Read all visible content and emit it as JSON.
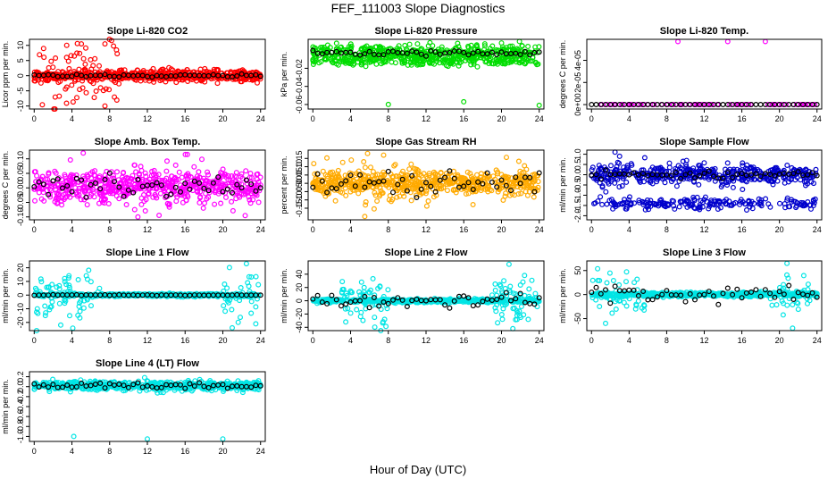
{
  "figure": {
    "title": "FEF_111003  Slope Diagnostics",
    "xlabel": "Hour of Day (UTC)"
  },
  "chart_data": [
    {
      "type": "scatter",
      "title": "Slope Li-820 CO2",
      "ylabel": "Licor ppm per min.",
      "color": "#ff0000",
      "xlim": [
        -0.5,
        24.5
      ],
      "ylim": [
        -11,
        12
      ],
      "xticks": [
        0,
        4,
        8,
        12,
        16,
        20,
        24
      ],
      "yticks": [
        -10,
        -5,
        0,
        5,
        10
      ],
      "yticklabels": [
        "-10",
        "-5",
        "0",
        "5",
        "10"
      ],
      "generator": {
        "center": 0,
        "spread": 2.5,
        "wide": 9,
        "wide_frac": 0.15,
        "tail_hours": [
          [
            0.5,
            9
          ]
        ],
        "black_spread": 0.3,
        "seed": 11
      },
      "outliers": [
        {
          "x": 5,
          "y": 10.5
        },
        {
          "x": 7.5,
          "y": 10.5
        },
        {
          "x": 1,
          "y": 9
        },
        {
          "x": 7.5,
          "y": -10
        }
      ]
    },
    {
      "type": "scatter",
      "title": "Slope Li-820 Pressure",
      "ylabel": "kPa per min.",
      "color": "#00dd00",
      "xlim": [
        -0.5,
        24.5
      ],
      "ylim": [
        -0.065,
        0.012
      ],
      "xticks": [
        0,
        4,
        8,
        12,
        16,
        20,
        24
      ],
      "yticks": [
        -0.06,
        -0.04,
        -0.02
      ],
      "yticklabels": [
        "-0.06",
        "-0.04",
        "-0.02"
      ],
      "generator": {
        "center": -0.003,
        "spread": 0.006,
        "wide": 0.008,
        "wide_frac": 0.2,
        "band2": -0.012,
        "black_spread": 0.002,
        "seed": 23
      },
      "outliers": [
        {
          "x": 8,
          "y": -0.06
        },
        {
          "x": 16,
          "y": -0.057
        },
        {
          "x": 24,
          "y": -0.061
        },
        {
          "x": 20,
          "y": 0.008
        }
      ]
    },
    {
      "type": "scatter",
      "title": "Slope Li-820 Temp.",
      "ylabel": "degrees C per min.",
      "color": "#ff00ff",
      "xlim": [
        -0.5,
        24.5
      ],
      "ylim": [
        -4e-06,
        5.9e-05
      ],
      "xticks": [
        0,
        4,
        8,
        12,
        16,
        20,
        24
      ],
      "yticks": [
        0,
        2e-05,
        4e-05
      ],
      "yticklabels": [
        "0e+00",
        "2e-05",
        "4e-05"
      ],
      "generator": {
        "center": 0,
        "spread": 0,
        "wide": 0,
        "wide_frac": 0,
        "black_spread": 0,
        "seed": 31,
        "flat": true
      },
      "outliers": [
        {
          "x": 9.2,
          "y": 5.7e-05
        },
        {
          "x": 14.5,
          "y": 5.7e-05
        },
        {
          "x": 18.5,
          "y": 5.7e-05
        }
      ]
    },
    {
      "type": "scatter",
      "title": "Slope Amb. Box Temp.",
      "ylabel": "degrees C per min.",
      "color": "#ff00ff",
      "xlim": [
        -0.5,
        24.5
      ],
      "ylim": [
        -0.11,
        0.13
      ],
      "xticks": [
        0,
        4,
        8,
        12,
        16,
        20,
        24
      ],
      "yticks": [
        -0.1,
        -0.05,
        0,
        0.05,
        0.1
      ],
      "yticklabels": [
        "-0.10",
        "-0.05",
        "0.00",
        "0.05",
        "0.10"
      ],
      "generator": {
        "center": 0.005,
        "spread": 0.035,
        "wide": 0.065,
        "wide_frac": 0.15,
        "black_spread": 0.03,
        "seed": 43
      },
      "outliers": [
        {
          "x": 5.2,
          "y": 0.12
        },
        {
          "x": 11,
          "y": -0.1
        }
      ]
    },
    {
      "type": "scatter",
      "title": "Slope Gas Stream RH",
      "ylabel": "percent per min.",
      "color": "#ffaa00",
      "xlim": [
        -0.5,
        24.5
      ],
      "ylim": [
        -0.22,
        0.2
      ],
      "xticks": [
        0,
        4,
        8,
        12,
        16,
        20,
        24
      ],
      "yticks": [
        -0.15,
        -0.1,
        -0.05,
        0,
        0.05,
        0.1,
        0.15
      ],
      "yticklabels": [
        "-0.15",
        "-0.10",
        "-0.05",
        "0.00",
        "0.05",
        "0.10",
        "0.15"
      ],
      "generator": {
        "center": 0,
        "spread": 0.05,
        "wide": 0.11,
        "wide_frac": 0.12,
        "black_spread": 0.05,
        "seed": 57
      },
      "outliers": [
        {
          "x": 5.8,
          "y": 0.18
        },
        {
          "x": 5.5,
          "y": -0.2
        },
        {
          "x": 7.5,
          "y": 0.17
        }
      ]
    },
    {
      "type": "scatter",
      "title": "Slope Sample Flow",
      "ylabel": "ml/min per min.",
      "color": "#0000cc",
      "xlim": [
        -0.5,
        24.5
      ],
      "ylim": [
        -2.2,
        1.2
      ],
      "xticks": [
        0,
        4,
        8,
        12,
        16,
        20,
        24
      ],
      "yticks": [
        -2,
        -1.5,
        -1,
        -0.5,
        0,
        0.5,
        1
      ],
      "yticklabels": [
        "-2.0",
        "-1.5",
        "-1.0",
        "-0.5",
        "0.0",
        "0.5",
        "1.0"
      ],
      "generator": {
        "center": 0,
        "spread": 0.3,
        "wide": 0.5,
        "wide_frac": 0.2,
        "band2": -1.4,
        "black_spread": 0.15,
        "seed": 71
      },
      "outliers": [
        {
          "x": 2.5,
          "y": 1.1
        }
      ]
    },
    {
      "type": "scatter",
      "title": "Slope Line 1 Flow",
      "ylabel": "ml/min per min.",
      "color": "#00e5e5",
      "xlim": [
        -0.5,
        24.5
      ],
      "ylim": [
        -26,
        25
      ],
      "xticks": [
        0,
        4,
        8,
        12,
        16,
        20,
        24
      ],
      "yticks": [
        -20,
        -10,
        0,
        10,
        20
      ],
      "yticklabels": [
        "-20",
        "-10",
        "0",
        "10",
        "20"
      ],
      "generator": {
        "center": 0,
        "spread": 1.5,
        "wide": 14,
        "wide_frac": 0.1,
        "tail_hours": [
          [
            0,
            7
          ],
          [
            20,
            24
          ]
        ],
        "black_spread": 0.2,
        "seed": 83
      },
      "outliers": [
        {
          "x": 21,
          "y": -24
        },
        {
          "x": 23.5,
          "y": -21
        },
        {
          "x": 22.5,
          "y": 23
        }
      ]
    },
    {
      "type": "scatter",
      "title": "Slope Line 2 Flow",
      "ylabel": "ml/min per min.",
      "color": "#00e5e5",
      "xlim": [
        -0.5,
        24.5
      ],
      "ylim": [
        -45,
        60
      ],
      "xticks": [
        0,
        4,
        8,
        12,
        16,
        20,
        24
      ],
      "yticks": [
        -40,
        -20,
        0,
        20,
        40
      ],
      "yticklabels": [
        "-40",
        "-20",
        "0",
        "20",
        "40"
      ],
      "generator": {
        "center": 0,
        "spread": 4,
        "wide": 25,
        "wide_frac": 0.1,
        "tail_hours": [
          [
            3,
            8
          ],
          [
            19,
            24
          ]
        ],
        "black_spread": 8,
        "seed": 97
      },
      "outliers": [
        {
          "x": 20.8,
          "y": 55
        },
        {
          "x": 21.2,
          "y": -42
        }
      ]
    },
    {
      "type": "scatter",
      "title": "Slope Line 3 Flow",
      "ylabel": "ml/min per min.",
      "color": "#00e5e5",
      "xlim": [
        -0.5,
        24.5
      ],
      "ylim": [
        -75,
        70
      ],
      "xticks": [
        0,
        4,
        8,
        12,
        16,
        20,
        24
      ],
      "yticks": [
        -50,
        0,
        50
      ],
      "yticklabels": [
        "-50",
        "0",
        "50"
      ],
      "generator": {
        "center": 0,
        "spread": 6,
        "wide": 30,
        "wide_frac": 0.12,
        "tail_hours": [
          [
            0,
            6
          ],
          [
            19,
            24
          ]
        ],
        "black_spread": 12,
        "seed": 109
      },
      "outliers": [
        {
          "x": 20.8,
          "y": 65
        },
        {
          "x": 21.4,
          "y": -70
        },
        {
          "x": 1.5,
          "y": -60
        }
      ]
    },
    {
      "type": "scatter",
      "title": "Slope Line 4 (LT) Flow",
      "ylabel": "ml/min per min.",
      "color": "#00e5e5",
      "xlim": [
        -0.5,
        24.5
      ],
      "ylim": [
        -1.1,
        0.3
      ],
      "xticks": [
        0,
        4,
        8,
        12,
        16,
        20,
        24
      ],
      "yticks": [
        -1,
        -0.8,
        -0.6,
        -0.4,
        -0.2,
        0,
        0.2
      ],
      "yticklabels": [
        "-1.0",
        "-0.8",
        "-0.6",
        "-0.4",
        "-0.2",
        "0.0",
        "0.2"
      ],
      "generator": {
        "center": 0.02,
        "spread": 0.06,
        "wide": 0.1,
        "wide_frac": 0.1,
        "black_spread": 0.04,
        "seed": 127
      },
      "outliers": [
        {
          "x": 4.2,
          "y": -1.0
        },
        {
          "x": 12,
          "y": -1.05
        },
        {
          "x": 20,
          "y": -1.05
        }
      ]
    }
  ]
}
